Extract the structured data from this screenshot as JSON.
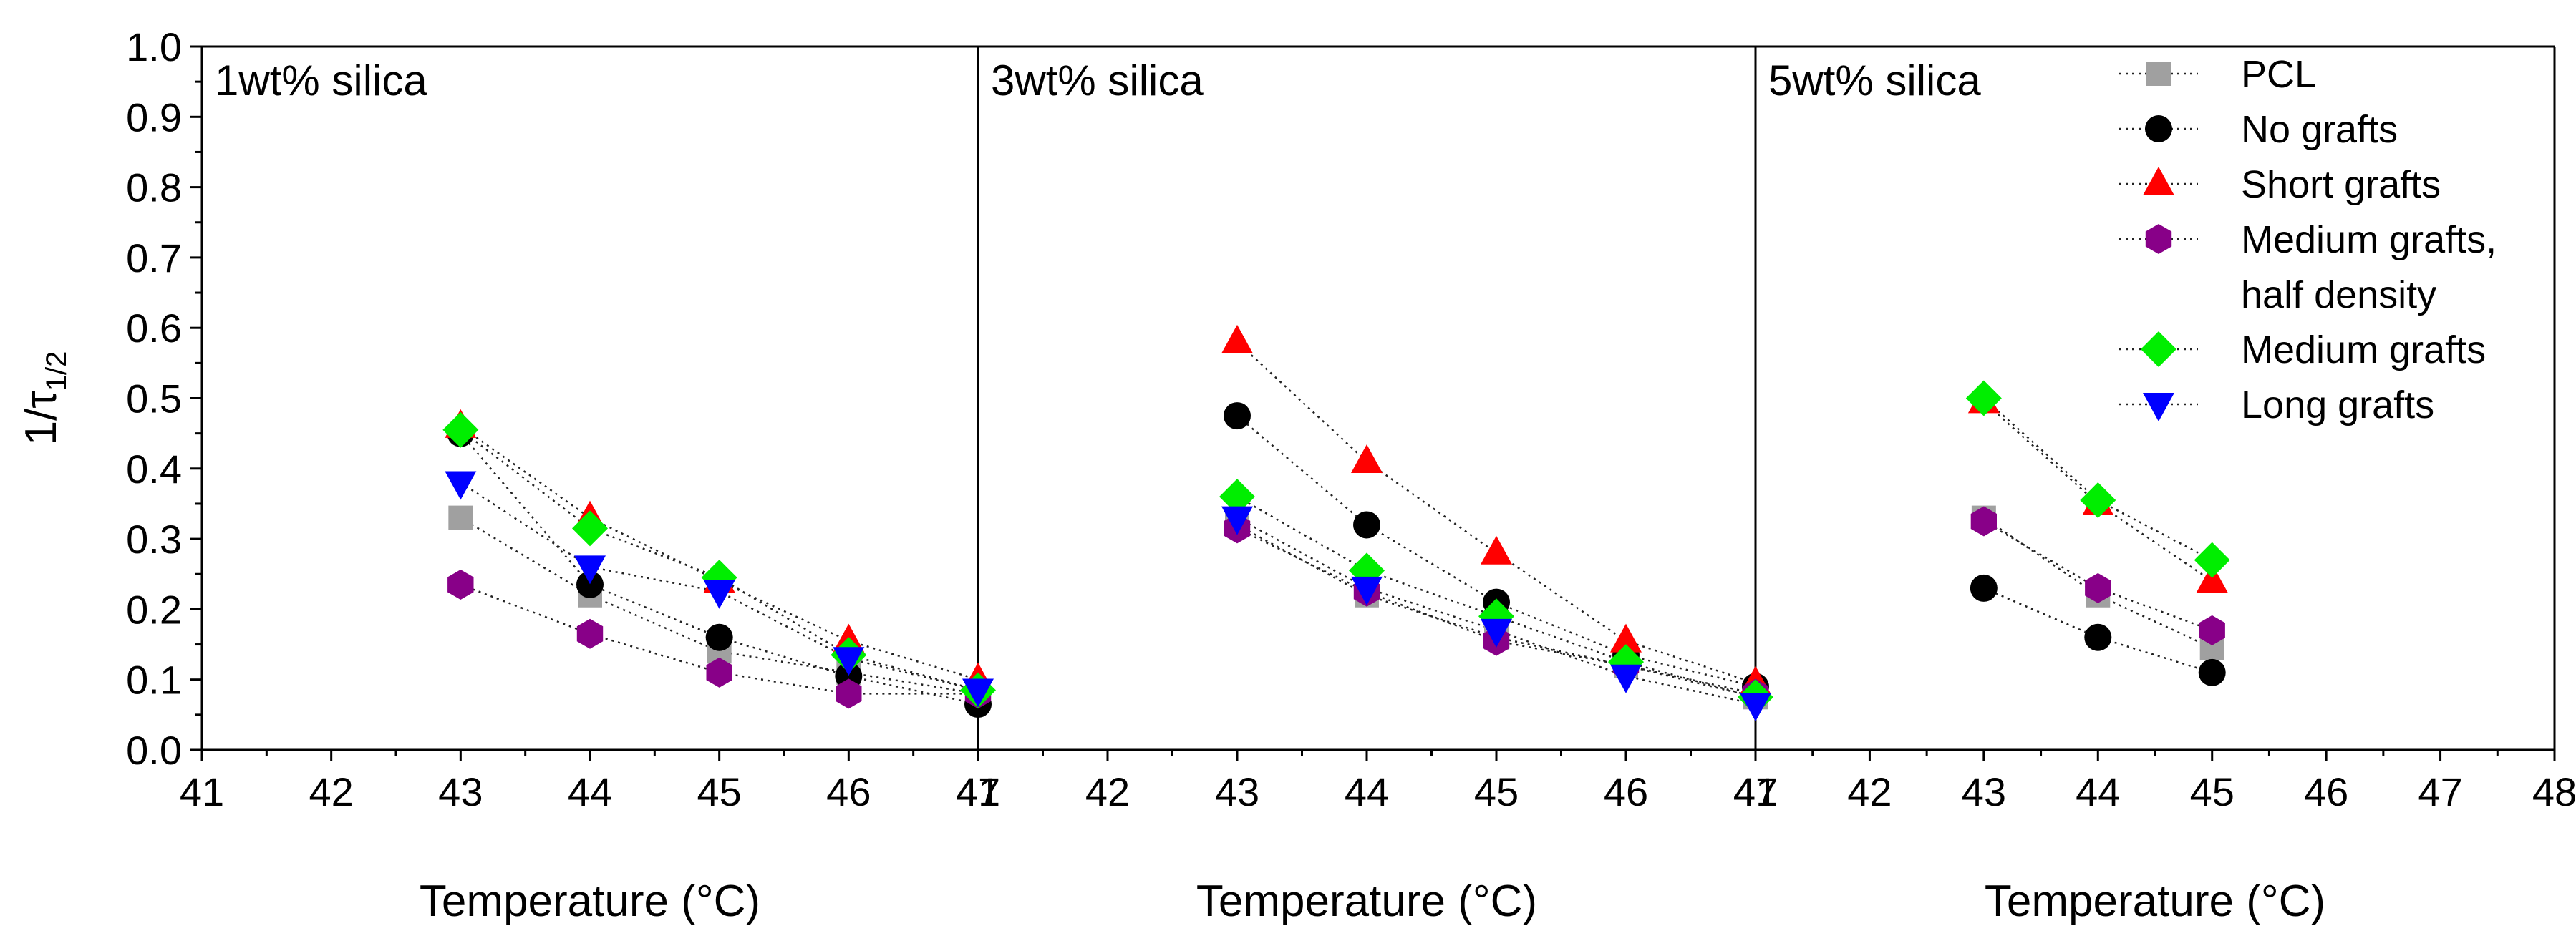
{
  "chart_data": {
    "type": "scatter",
    "ylabel_main": "1/τ",
    "ylabel_sub": "1/2",
    "xlabel": "Temperature (°C)",
    "ylim": [
      0.0,
      1.0
    ],
    "yticks": [
      "0.0",
      "0.1",
      "0.2",
      "0.3",
      "0.4",
      "0.5",
      "0.6",
      "0.7",
      "0.8",
      "0.9",
      "1.0"
    ],
    "legend": [
      {
        "name": "PCL",
        "marker": "square",
        "color": "#a0a0a0"
      },
      {
        "name": "No grafts",
        "marker": "circle",
        "color": "#000000"
      },
      {
        "name": "Short grafts",
        "marker": "triangle-up",
        "color": "#ff0000"
      },
      {
        "name": "Medium grafts,",
        "name2": "half density",
        "marker": "hexagon",
        "color": "#880088"
      },
      {
        "name": "Medium grafts",
        "marker": "diamond",
        "color": "#00ee00"
      },
      {
        "name": "Long grafts",
        "marker": "triangle-down",
        "color": "#0000ff"
      }
    ],
    "panels": [
      {
        "label": "1wt% silica",
        "xlim": [
          41,
          47
        ],
        "xticks": [
          "41",
          "42",
          "43",
          "44",
          "45",
          "46",
          "47"
        ],
        "series": [
          {
            "name": "PCL",
            "x": [
              43,
              44,
              45,
              46,
              47
            ],
            "y": [
              0.33,
              0.22,
              0.14,
              0.11,
              0.08
            ]
          },
          {
            "name": "No grafts",
            "x": [
              43,
              44,
              45,
              46,
              47
            ],
            "y": [
              0.45,
              0.235,
              0.16,
              0.105,
              0.065
            ]
          },
          {
            "name": "Short grafts",
            "x": [
              43,
              44,
              45,
              46,
              47
            ],
            "y": [
              0.46,
              0.33,
              0.24,
              0.155,
              0.1
            ]
          },
          {
            "name": "Medium grafts, half density",
            "x": [
              43,
              44,
              45,
              46,
              47
            ],
            "y": [
              0.235,
              0.165,
              0.11,
              0.08,
              0.08
            ]
          },
          {
            "name": "Medium grafts",
            "x": [
              43,
              44,
              45,
              46,
              47
            ],
            "y": [
              0.455,
              0.315,
              0.245,
              0.135,
              0.085
            ]
          },
          {
            "name": "Long grafts",
            "x": [
              43,
              44,
              45,
              46,
              47
            ],
            "y": [
              0.38,
              0.26,
              0.225,
              0.13,
              0.085
            ]
          }
        ]
      },
      {
        "label": "3wt% silica",
        "xlim": [
          41,
          47
        ],
        "xticks": [
          "41",
          "42",
          "43",
          "44",
          "45",
          "46",
          "47"
        ],
        "series": [
          {
            "name": "PCL",
            "x": [
              43,
              44,
              45,
              46,
              47
            ],
            "y": [
              0.32,
              0.22,
              0.16,
              0.12,
              0.075
            ]
          },
          {
            "name": "No grafts",
            "x": [
              43,
              44,
              45,
              46,
              47
            ],
            "y": [
              0.475,
              0.32,
              0.21,
              0.135,
              0.09
            ]
          },
          {
            "name": "Short grafts",
            "x": [
              43,
              44,
              45,
              46,
              47
            ],
            "y": [
              0.58,
              0.41,
              0.28,
              0.155,
              0.095
            ]
          },
          {
            "name": "Medium grafts, half density",
            "x": [
              43,
              44,
              45,
              46,
              47
            ],
            "y": [
              0.315,
              0.225,
              0.155,
              0.12,
              0.08
            ]
          },
          {
            "name": "Medium grafts",
            "x": [
              43,
              44,
              45,
              46,
              47
            ],
            "y": [
              0.36,
              0.255,
              0.19,
              0.125,
              0.075
            ]
          },
          {
            "name": "Long grafts",
            "x": [
              43,
              44,
              45,
              46,
              47
            ],
            "y": [
              0.33,
              0.23,
              0.17,
              0.105,
              0.065
            ]
          }
        ]
      },
      {
        "label": "5wt% silica",
        "xlim": [
          41,
          48
        ],
        "xticks": [
          "41",
          "42",
          "43",
          "44",
          "45",
          "46",
          "47",
          "48"
        ],
        "series": [
          {
            "name": "PCL",
            "x": [
              43,
              44,
              45
            ],
            "y": [
              0.33,
              0.22,
              0.145
            ]
          },
          {
            "name": "No grafts",
            "x": [
              43,
              44,
              45
            ],
            "y": [
              0.23,
              0.16,
              0.11
            ]
          },
          {
            "name": "Short grafts",
            "x": [
              43,
              44,
              45
            ],
            "y": [
              0.495,
              0.35,
              0.24
            ]
          },
          {
            "name": "Medium grafts, half density",
            "x": [
              43,
              44,
              45
            ],
            "y": [
              0.325,
              0.23,
              0.17
            ]
          },
          {
            "name": "Medium grafts",
            "x": [
              43,
              44,
              45
            ],
            "y": [
              0.5,
              0.355,
              0.27
            ]
          }
        ]
      }
    ]
  }
}
